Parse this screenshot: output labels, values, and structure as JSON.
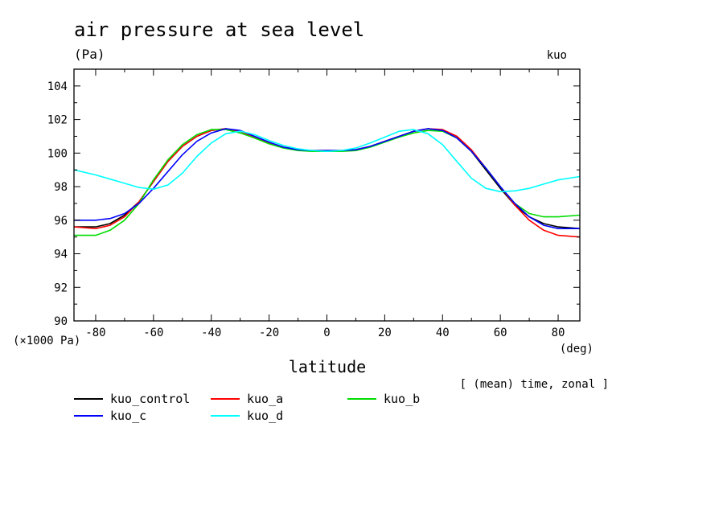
{
  "chart_data": {
    "type": "line",
    "title": "air pressure at sea level",
    "units": "(Pa)",
    "run_label": "kuo",
    "xlabel": "latitude",
    "x_units": "(deg)",
    "y_scale_note": "(×1000 Pa)",
    "note": "[ (mean) time, zonal ]",
    "xlim": [
      -87.5,
      87.5
    ],
    "ylim": [
      90,
      105
    ],
    "xticks": [
      -80,
      -60,
      -40,
      -20,
      0,
      20,
      40,
      60,
      80
    ],
    "yticks": [
      90,
      92,
      94,
      96,
      98,
      100,
      102,
      104
    ],
    "x": [
      -87.5,
      -80,
      -75,
      -70,
      -65,
      -60,
      -55,
      -50,
      -45,
      -40,
      -35,
      -30,
      -25,
      -20,
      -15,
      -10,
      -5,
      0,
      5,
      10,
      15,
      20,
      25,
      30,
      35,
      40,
      45,
      50,
      55,
      60,
      65,
      70,
      75,
      80,
      87.5
    ],
    "series": [
      {
        "name": "kuo_control",
        "color": "#000000",
        "values": [
          95.6,
          95.6,
          95.8,
          96.3,
          97.1,
          98.3,
          99.5,
          100.4,
          101.0,
          101.35,
          101.45,
          101.3,
          100.95,
          100.6,
          100.35,
          100.2,
          100.15,
          100.15,
          100.15,
          100.2,
          100.4,
          100.7,
          101.0,
          101.3,
          101.45,
          101.35,
          100.9,
          100.1,
          99.0,
          97.9,
          96.9,
          96.2,
          95.8,
          95.6,
          95.5
        ]
      },
      {
        "name": "kuo_a",
        "color": "#ff0000",
        "values": [
          95.6,
          95.5,
          95.7,
          96.2,
          97.1,
          98.3,
          99.5,
          100.4,
          101.0,
          101.35,
          101.45,
          101.3,
          100.95,
          100.6,
          100.35,
          100.2,
          100.15,
          100.15,
          100.15,
          100.2,
          100.4,
          100.7,
          101.0,
          101.3,
          101.45,
          101.4,
          101.0,
          100.2,
          99.1,
          98.0,
          96.9,
          96.0,
          95.4,
          95.1,
          95.0
        ]
      },
      {
        "name": "kuo_b",
        "color": "#00dd00",
        "values": [
          95.1,
          95.1,
          95.4,
          96.0,
          97.0,
          98.4,
          99.6,
          100.5,
          101.1,
          101.4,
          101.4,
          101.2,
          100.9,
          100.55,
          100.3,
          100.15,
          100.1,
          100.1,
          100.1,
          100.15,
          100.35,
          100.65,
          100.95,
          101.2,
          101.35,
          101.3,
          100.9,
          100.1,
          99.1,
          98.0,
          97.0,
          96.4,
          96.2,
          96.2,
          96.3
        ]
      },
      {
        "name": "kuo_c",
        "color": "#0000ff",
        "values": [
          96.0,
          96.0,
          96.1,
          96.4,
          97.0,
          97.9,
          98.9,
          99.9,
          100.7,
          101.2,
          101.45,
          101.35,
          101.0,
          100.65,
          100.35,
          100.2,
          100.15,
          100.15,
          100.15,
          100.2,
          100.4,
          100.7,
          101.0,
          101.3,
          101.45,
          101.35,
          100.9,
          100.1,
          99.1,
          98.0,
          97.0,
          96.2,
          95.7,
          95.5,
          95.5
        ]
      },
      {
        "name": "kuo_d",
        "color": "#00ffff",
        "values": [
          99.0,
          98.7,
          98.45,
          98.2,
          97.95,
          97.85,
          98.1,
          98.8,
          99.8,
          100.6,
          101.15,
          101.3,
          101.1,
          100.75,
          100.45,
          100.25,
          100.15,
          100.1,
          100.15,
          100.3,
          100.6,
          100.95,
          101.3,
          101.4,
          101.15,
          100.5,
          99.5,
          98.5,
          97.9,
          97.7,
          97.75,
          97.9,
          98.15,
          98.4,
          98.6
        ]
      }
    ]
  }
}
